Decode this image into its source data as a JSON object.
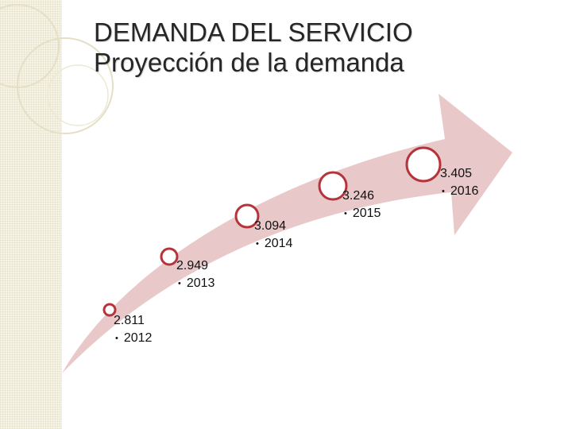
{
  "title": {
    "line1": "DEMANDA DEL SERVICIO",
    "line2": "Proyección de la demanda"
  },
  "colors": {
    "arrow": "#e8c8c8",
    "circle_stroke": "#b5343c",
    "circle_fill": "#ffffff",
    "strip": "#f6f4e6"
  },
  "steps": [
    {
      "value": "2.811",
      "year": "2012"
    },
    {
      "value": "2.949",
      "year": "2013"
    },
    {
      "value": "3.094",
      "year": "2014"
    },
    {
      "value": "3.246",
      "year": "2015"
    },
    {
      "value": "3.405",
      "year": "2016"
    }
  ]
}
